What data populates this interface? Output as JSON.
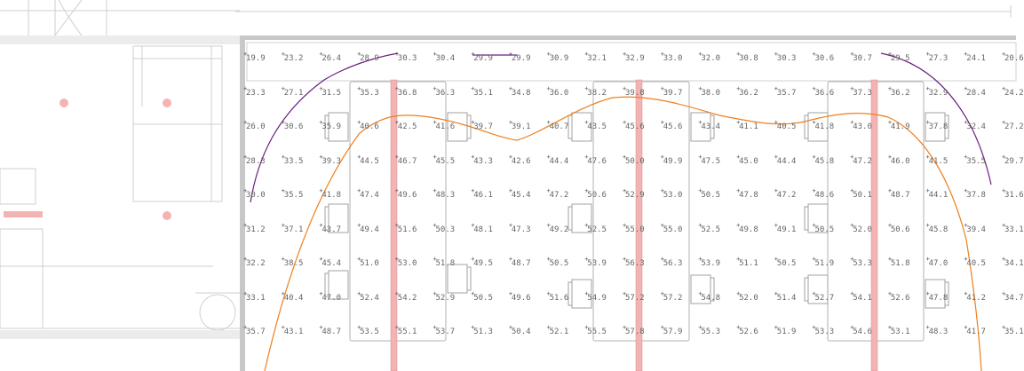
{
  "lux_grid": {
    "rows": [
      [
        "19.9",
        "23.2",
        "26.4",
        "28.9",
        "30.3",
        "30.4",
        "29.9",
        "29.9",
        "30.9",
        "32.1",
        "32.9",
        "33.0",
        "32.0",
        "30.8",
        "30.3",
        "30.6",
        "30.7",
        "29.5",
        "27.3",
        "24.1",
        "20.6"
      ],
      [
        "23.3",
        "27.1",
        "31.5",
        "35.3",
        "36.8",
        "36.3",
        "35.1",
        "34.8",
        "36.0",
        "38.2",
        "39.8",
        "39.7",
        "38.0",
        "36.2",
        "35.7",
        "36.6",
        "37.3",
        "36.2",
        "32.9",
        "28.4",
        "24.2"
      ],
      [
        "26.0",
        "30.6",
        "35.9",
        "40.6",
        "42.5",
        "41.6",
        "39.7",
        "39.1",
        "40.7",
        "43.5",
        "45.6",
        "45.6",
        "43.4",
        "41.1",
        "40.5",
        "41.8",
        "43.0",
        "41.9",
        "37.8",
        "32.4",
        "27.2"
      ],
      [
        "28.3",
        "33.5",
        "39.3",
        "44.5",
        "46.7",
        "45.5",
        "43.3",
        "42.6",
        "44.4",
        "47.6",
        "50.0",
        "49.9",
        "47.5",
        "45.0",
        "44.4",
        "45.8",
        "47.2",
        "46.0",
        "41.5",
        "35.5",
        "29.7"
      ],
      [
        "30.0",
        "35.5",
        "41.8",
        "47.4",
        "49.6",
        "48.3",
        "46.1",
        "45.4",
        "47.2",
        "50.6",
        "52.9",
        "53.0",
        "50.5",
        "47.8",
        "47.2",
        "48.6",
        "50.1",
        "48.7",
        "44.1",
        "37.8",
        "31.6"
      ],
      [
        "31.2",
        "37.1",
        "43.7",
        "49.4",
        "51.6",
        "50.3",
        "48.1",
        "47.3",
        "49.2",
        "52.5",
        "55.0",
        "55.0",
        "52.5",
        "49.8",
        "49.1",
        "50.5",
        "52.0",
        "50.6",
        "45.8",
        "39.4",
        "33.1"
      ],
      [
        "32.2",
        "38.5",
        "45.4",
        "51.0",
        "53.0",
        "51.8",
        "49.5",
        "48.7",
        "50.5",
        "53.9",
        "56.3",
        "56.3",
        "53.9",
        "51.1",
        "50.5",
        "51.9",
        "53.3",
        "51.8",
        "47.0",
        "40.5",
        "34.1"
      ],
      [
        "33.1",
        "40.4",
        "47.0",
        "52.4",
        "54.2",
        "52.9",
        "50.5",
        "49.6",
        "51.6",
        "54.9",
        "57.2",
        "57.2",
        "54.8",
        "52.0",
        "51.4",
        "52.7",
        "54.1",
        "52.6",
        "47.8",
        "41.2",
        "34.7"
      ],
      [
        "35.7",
        "43.1",
        "48.7",
        "53.5",
        "55.1",
        "53.7",
        "51.3",
        "50.4",
        "52.1",
        "55.5",
        "57.8",
        "57.9",
        "55.3",
        "52.6",
        "51.9",
        "53.3",
        "54.6",
        "53.1",
        "48.3",
        "41.7",
        "35.1"
      ]
    ]
  },
  "isolines": [
    {
      "name": "isoline-orange",
      "color": "#f07f1c"
    },
    {
      "name": "isoline-purple",
      "color": "#6a1d7f"
    }
  ],
  "colors": {
    "luminaire": "#f4b3b3",
    "luminaire_stroke": "#d98a8a",
    "wall": "#c8c8c8",
    "furniture": "#aaaaaa"
  }
}
